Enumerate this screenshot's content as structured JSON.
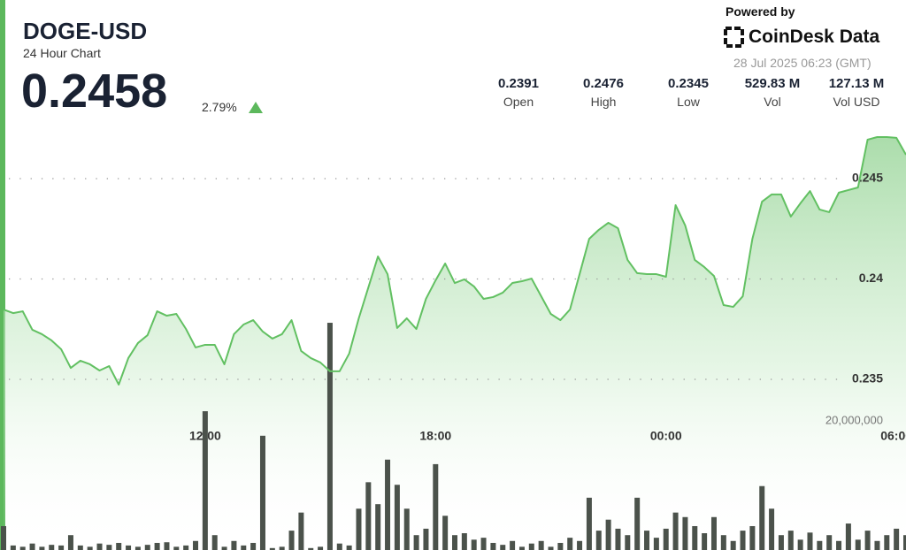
{
  "header": {
    "title": "DOGE-USD",
    "subtitle": "24 Hour Chart",
    "price": "0.2458",
    "change": "2.79%",
    "powered_by": "Powered by",
    "brand": "CoinDesk Data",
    "timestamp": "28 Jul 2025 06:23 (GMT)",
    "stats": [
      {
        "value": "0.2391",
        "label": "Open"
      },
      {
        "value": "0.2476",
        "label": "High"
      },
      {
        "value": "0.2345",
        "label": "Low"
      },
      {
        "value": "529.83 M",
        "label": "Vol"
      },
      {
        "value": "127.13 M",
        "label": "Vol USD"
      }
    ]
  },
  "chart_data": {
    "type": "line",
    "x": [
      6.75,
      7,
      7.25,
      7.5,
      7.75,
      8,
      8.25,
      8.5,
      8.75,
      9,
      9.25,
      9.5,
      9.75,
      10,
      10.25,
      10.5,
      10.75,
      11,
      11.25,
      11.5,
      11.75,
      12,
      12.25,
      12.5,
      12.75,
      13,
      13.25,
      13.5,
      13.75,
      14,
      14.25,
      14.5,
      14.75,
      15,
      15.25,
      15.5,
      15.75,
      16,
      16.25,
      16.5,
      16.75,
      17,
      17.25,
      17.5,
      17.75,
      18,
      18.25,
      18.5,
      18.75,
      19,
      19.25,
      19.5,
      19.75,
      20,
      20.25,
      20.5,
      20.75,
      21,
      21.25,
      21.5,
      21.75,
      22,
      22.25,
      22.5,
      22.75,
      23,
      23.25,
      23.5,
      23.75,
      24,
      24.25,
      24.5,
      24.75,
      25,
      25.25,
      25.5,
      25.75,
      26,
      26.25,
      26.5,
      26.75,
      27,
      27.25,
      27.5,
      27.75,
      28,
      28.25,
      28.5,
      28.75,
      29,
      29.25,
      29.5,
      29.75,
      30,
      30.25
    ],
    "series": [
      {
        "color": "#62c062",
        "values": [
          0.23848,
          0.2383,
          0.23839,
          0.23747,
          0.23725,
          0.23694,
          0.2365,
          0.23557,
          0.23593,
          0.23575,
          0.23544,
          0.23566,
          0.23474,
          0.23606,
          0.23681,
          0.2372,
          0.23839,
          0.23817,
          0.23826,
          0.23751,
          0.23659,
          0.23672,
          0.23672,
          0.23575,
          0.23725,
          0.23773,
          0.23795,
          0.23738,
          0.23703,
          0.23725,
          0.23795,
          0.23641,
          0.23606,
          0.23584,
          0.2354,
          0.2354,
          0.23628,
          0.23804,
          0.23958,
          0.24112,
          0.24024,
          0.23756,
          0.23804,
          0.23751,
          0.23901,
          0.23993,
          0.24077,
          0.2398,
          0.23998,
          0.23963,
          0.23901,
          0.2391,
          0.23932,
          0.2398,
          0.23989,
          0.24002,
          0.23914,
          0.23826,
          0.23795,
          0.23848,
          0.24024,
          0.242,
          0.24245,
          0.2428,
          0.24253,
          0.24095,
          0.24029,
          0.24024,
          0.24024,
          0.24011,
          0.24368,
          0.24267,
          0.24095,
          0.24059,
          0.24015,
          0.2387,
          0.23861,
          0.23914,
          0.242,
          0.24385,
          0.24421,
          0.24421,
          0.24311,
          0.24377,
          0.24438,
          0.24346,
          0.24333,
          0.2443,
          0.24443,
          0.24456,
          0.24694,
          0.24707,
          0.24707,
          0.24703,
          0.24619
        ]
      },
      {
        "type": "bar",
        "axis": "y2",
        "color": "#4b524b",
        "values": [
          3700000,
          700000,
          500000,
          1000000,
          500000,
          800000,
          700000,
          2300000,
          700000,
          500000,
          1000000,
          800000,
          1100000,
          700000,
          500000,
          800000,
          1100000,
          1200000,
          500000,
          700000,
          1400000,
          21500000,
          2300000,
          500000,
          1400000,
          700000,
          1100000,
          17700000,
          300000,
          500000,
          3000000,
          5800000,
          300000,
          500000,
          35200000,
          1000000,
          700000,
          6400000,
          10500000,
          7100000,
          14000000,
          10100000,
          6400000,
          2300000,
          3300000,
          13300000,
          5300000,
          2300000,
          2600000,
          1600000,
          1900000,
          1100000,
          800000,
          1400000,
          500000,
          1000000,
          1400000,
          500000,
          1100000,
          1900000,
          1400000,
          8100000,
          3000000,
          4700000,
          3300000,
          2300000,
          8100000,
          3000000,
          1900000,
          3300000,
          5800000,
          5100000,
          3700000,
          2600000,
          5100000,
          2300000,
          1400000,
          3000000,
          3700000,
          9900000,
          6400000,
          2300000,
          3000000,
          1600000,
          2700000,
          1400000,
          2300000,
          1400000,
          4100000,
          1600000,
          3000000,
          1400000,
          2300000,
          3300000,
          2300000
        ]
      }
    ],
    "xlim": [
      6.75,
      30.25
    ],
    "xticks": [
      {
        "value": 12,
        "label": "12:00"
      },
      {
        "value": 18,
        "label": "18:00"
      },
      {
        "value": 24,
        "label": "00:00"
      },
      {
        "value": 30,
        "label": "06:00"
      }
    ],
    "ylim": [
      0.2325,
      0.2485
    ],
    "yticks": [
      0.235,
      0.24,
      0.245
    ],
    "y2lim": [
      0,
      48000000
    ],
    "y2ticks": [
      {
        "value": 20000000,
        "label": "20,000,000"
      }
    ],
    "grid": true
  }
}
